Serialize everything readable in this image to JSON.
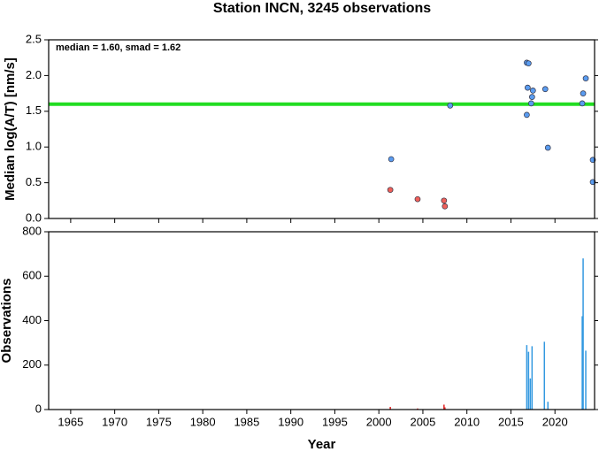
{
  "chart_data": [
    {
      "type": "scatter",
      "title": "Station INCN, 3245 observations",
      "ylabel": "Median log(A/T) [nm/s]",
      "annotation": "median = 1.60, smad = 1.62",
      "median_line": {
        "value": 1.6,
        "color": "#22dd22"
      },
      "xlim": [
        1962.5,
        2024.5
      ],
      "xticks": [
        1965,
        1970,
        1975,
        1980,
        1985,
        1990,
        1995,
        2000,
        2005,
        2010,
        2015,
        2020
      ],
      "show_xtick_labels": false,
      "ylim": [
        0,
        2.5
      ],
      "yticks": [
        {
          "value": 0,
          "label": "0.0"
        },
        {
          "value": 0.5,
          "label": "0.5"
        },
        {
          "value": 1,
          "label": "1.0"
        },
        {
          "value": 1.5,
          "label": "1.5"
        },
        {
          "value": 2,
          "label": "2.0"
        },
        {
          "value": 2.5,
          "label": "2.5"
        }
      ],
      "series": [
        {
          "color": "#f0605a",
          "x": [
            2001.3,
            2004.4,
            2007.4,
            2007.5
          ],
          "values": [
            0.4,
            0.27,
            0.25,
            0.17
          ]
        },
        {
          "color": "#5a9cf0",
          "x": [
            2001.4,
            2008.1,
            2016.8,
            2017.0,
            2016.9,
            2016.8,
            2017.3,
            2017.4,
            2017.5,
            2018.9,
            2019.2,
            2023.1,
            2023.2,
            2023.5,
            2024.3,
            2024.3
          ],
          "values": [
            0.83,
            1.58,
            2.18,
            2.17,
            1.83,
            1.45,
            1.61,
            1.7,
            1.79,
            1.81,
            0.99,
            1.61,
            1.75,
            1.96,
            0.82,
            0.51
          ]
        }
      ]
    },
    {
      "type": "spike",
      "xlabel": "Year",
      "ylabel": "Observations",
      "xlim": [
        1962.5,
        2024.5
      ],
      "xticks": [
        1965,
        1970,
        1975,
        1980,
        1985,
        1990,
        1995,
        2000,
        2005,
        2010,
        2015,
        2020
      ],
      "show_xtick_labels": true,
      "ylim": [
        0,
        800
      ],
      "yticks": [
        0,
        200,
        400,
        600,
        800
      ],
      "series": [
        {
          "color": "#e02020",
          "x": [
            2001.3,
            2004.4,
            2007.4,
            2007.5
          ],
          "values": [
            12,
            5,
            22,
            10
          ]
        },
        {
          "color": "#3399e0",
          "x": [
            2016.8,
            2017.0,
            2017.2,
            2017.4,
            2018.8,
            2019.2,
            2023.1,
            2023.2,
            2023.5
          ],
          "values": [
            290,
            260,
            140,
            285,
            305,
            35,
            420,
            680,
            265
          ]
        }
      ]
    }
  ]
}
